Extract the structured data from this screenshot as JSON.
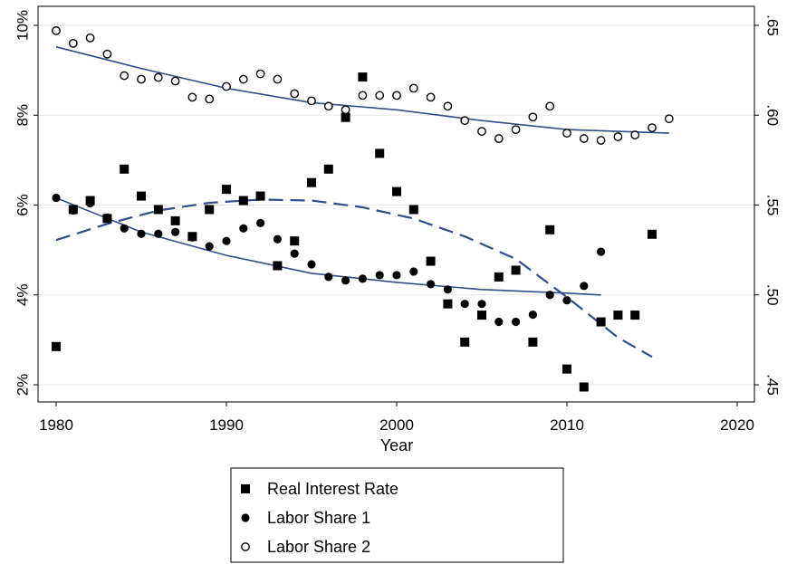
{
  "chart_data": {
    "type": "scatter",
    "xlabel": "Year",
    "x_ticks": [
      "1980",
      "1990",
      "2000",
      "2010",
      "2020"
    ],
    "xlim": [
      1980,
      2020
    ],
    "y_left_ticks": [
      "2%",
      "4%",
      "6%",
      "8%",
      "10%"
    ],
    "y_left_lim": [
      2,
      10
    ],
    "y_right_ticks": [
      ".45",
      ".50",
      ".55",
      ".60",
      ".65"
    ],
    "y_right_lim": [
      0.45,
      0.65
    ],
    "grid": true,
    "legend_position": "bottom-center",
    "series": [
      {
        "name": "Real Interest Rate",
        "axis": "left",
        "marker": "square",
        "x": [
          1980,
          1981,
          1982,
          1983,
          1984,
          1985,
          1986,
          1987,
          1988,
          1989,
          1990,
          1991,
          1992,
          1993,
          1994,
          1995,
          1996,
          1997,
          1998,
          1999,
          2000,
          2001,
          2002,
          2003,
          2004,
          2005,
          2006,
          2007,
          2008,
          2009,
          2010,
          2011,
          2012,
          2013,
          2014,
          2015
        ],
        "y": [
          2.85,
          5.9,
          6.1,
          5.7,
          6.8,
          6.2,
          5.9,
          5.65,
          5.3,
          5.9,
          6.35,
          6.1,
          6.2,
          4.65,
          5.2,
          6.5,
          6.8,
          7.95,
          8.85,
          7.15,
          6.3,
          5.9,
          4.75,
          3.8,
          2.95,
          3.55,
          4.4,
          4.55,
          2.95,
          5.45,
          2.35,
          1.95,
          3.4,
          3.55,
          3.55,
          5.35
        ]
      },
      {
        "name": "Labor Share 1",
        "axis": "right",
        "marker": "filled-circle",
        "x": [
          1980,
          1981,
          1982,
          1983,
          1984,
          1985,
          1986,
          1987,
          1988,
          1989,
          1990,
          1991,
          1992,
          1993,
          1994,
          1995,
          1996,
          1997,
          1998,
          1999,
          2000,
          2001,
          2002,
          2003,
          2004,
          2005,
          2006,
          2007,
          2008,
          2009,
          2010,
          2011,
          2012
        ],
        "y": [
          0.554,
          0.547,
          0.551,
          0.543,
          0.537,
          0.534,
          0.534,
          0.535,
          0.532,
          0.527,
          0.53,
          0.537,
          0.54,
          0.531,
          0.523,
          0.517,
          0.51,
          0.508,
          0.509,
          0.511,
          0.511,
          0.513,
          0.506,
          0.503,
          0.495,
          0.495,
          0.485,
          0.485,
          0.489,
          0.5,
          0.497,
          0.505,
          0.524
        ]
      },
      {
        "name": "Labor Share 2",
        "axis": "right",
        "marker": "hollow-circle",
        "x": [
          1980,
          1981,
          1982,
          1983,
          1984,
          1985,
          1986,
          1987,
          1988,
          1989,
          1990,
          1991,
          1992,
          1993,
          1994,
          1995,
          1996,
          1997,
          1998,
          1999,
          2000,
          2001,
          2002,
          2003,
          2004,
          2005,
          2006,
          2007,
          2008,
          2009,
          2010,
          2011,
          2012,
          2013,
          2014,
          2015,
          2016
        ],
        "y": [
          0.647,
          0.64,
          0.643,
          0.634,
          0.622,
          0.62,
          0.621,
          0.619,
          0.61,
          0.609,
          0.616,
          0.62,
          0.623,
          0.62,
          0.612,
          0.608,
          0.605,
          0.603,
          0.611,
          0.611,
          0.611,
          0.615,
          0.61,
          0.605,
          0.597,
          0.591,
          0.587,
          0.592,
          0.599,
          0.605,
          0.59,
          0.587,
          0.586,
          0.588,
          0.589,
          0.593,
          0.598
        ]
      }
    ],
    "fit_lines": [
      {
        "style": "solid",
        "axis": "right",
        "x": [
          1980,
          1985,
          1990,
          1995,
          2000,
          2005,
          2010,
          2016
        ],
        "y": [
          0.638,
          0.626,
          0.615,
          0.607,
          0.603,
          0.597,
          0.592,
          0.59
        ]
      },
      {
        "style": "solid",
        "axis": "right",
        "x": [
          1980,
          1985,
          1990,
          1995,
          2000,
          2005,
          2010,
          2012
        ],
        "y": [
          0.554,
          0.535,
          0.522,
          0.512,
          0.507,
          0.503,
          0.501,
          0.5
        ]
      },
      {
        "style": "dashed",
        "axis": "left",
        "x": [
          1980,
          1983,
          1986,
          1989,
          1992,
          1995,
          1998,
          2001,
          2004,
          2007,
          2010,
          2013,
          2015
        ],
        "y": [
          5.22,
          5.58,
          5.88,
          6.05,
          6.12,
          6.1,
          5.95,
          5.7,
          5.3,
          4.8,
          3.95,
          3.05,
          2.62
        ]
      }
    ]
  }
}
